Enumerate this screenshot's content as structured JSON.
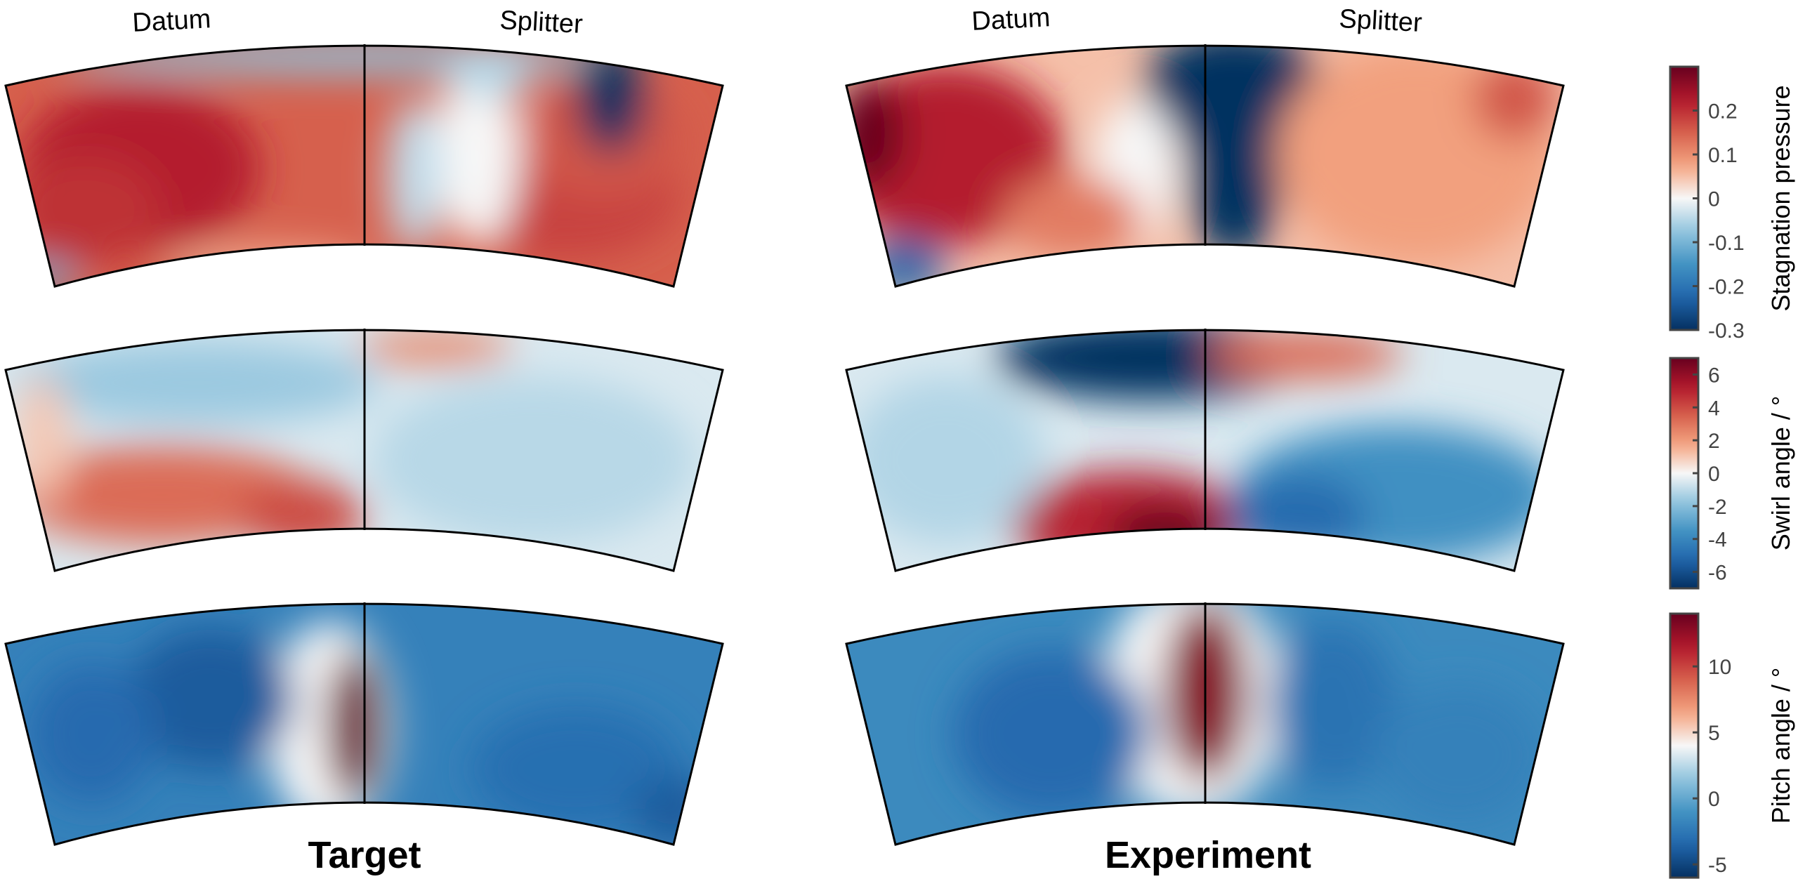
{
  "figure": {
    "columns": [
      {
        "title": "Target",
        "left_label": "Datum",
        "right_label": "Splitter"
      },
      {
        "title": "Experiment",
        "left_label": "Datum",
        "right_label": "Splitter"
      }
    ]
  },
  "chart_data": {
    "type": "heatmap",
    "description_rows": [
      "Stagnation pressure",
      "Swirl angle / °",
      "Pitch angle / °"
    ],
    "colorbars": [
      {
        "label": "Stagnation pressure",
        "range": [
          -0.3,
          0.3
        ],
        "ticks": [
          "0.2",
          "0.1",
          "0",
          "-0.1",
          "-0.2",
          "-0.3"
        ],
        "tick_values": [
          0.2,
          0.1,
          0,
          -0.1,
          -0.2,
          -0.3
        ],
        "mid": 0
      },
      {
        "label": "Swirl angle / °",
        "range": [
          -7,
          7
        ],
        "ticks": [
          "6",
          "4",
          "2",
          "0",
          "-2",
          "-4",
          "-6"
        ],
        "tick_values": [
          6,
          4,
          2,
          0,
          -2,
          -4,
          -6
        ],
        "mid": 0
      },
      {
        "label": "Pitch angle / °",
        "range": [
          -6,
          14
        ],
        "ticks": [
          "10",
          "5",
          "0",
          "-5"
        ],
        "tick_values": [
          10,
          5,
          0,
          -5
        ],
        "mid": 4
      }
    ],
    "colormap": [
      "#053061",
      "#2166ac",
      "#4393c3",
      "#92c5de",
      "#f7f7f7",
      "#f4a582",
      "#d6604d",
      "#b2182b",
      "#67001f"
    ]
  }
}
